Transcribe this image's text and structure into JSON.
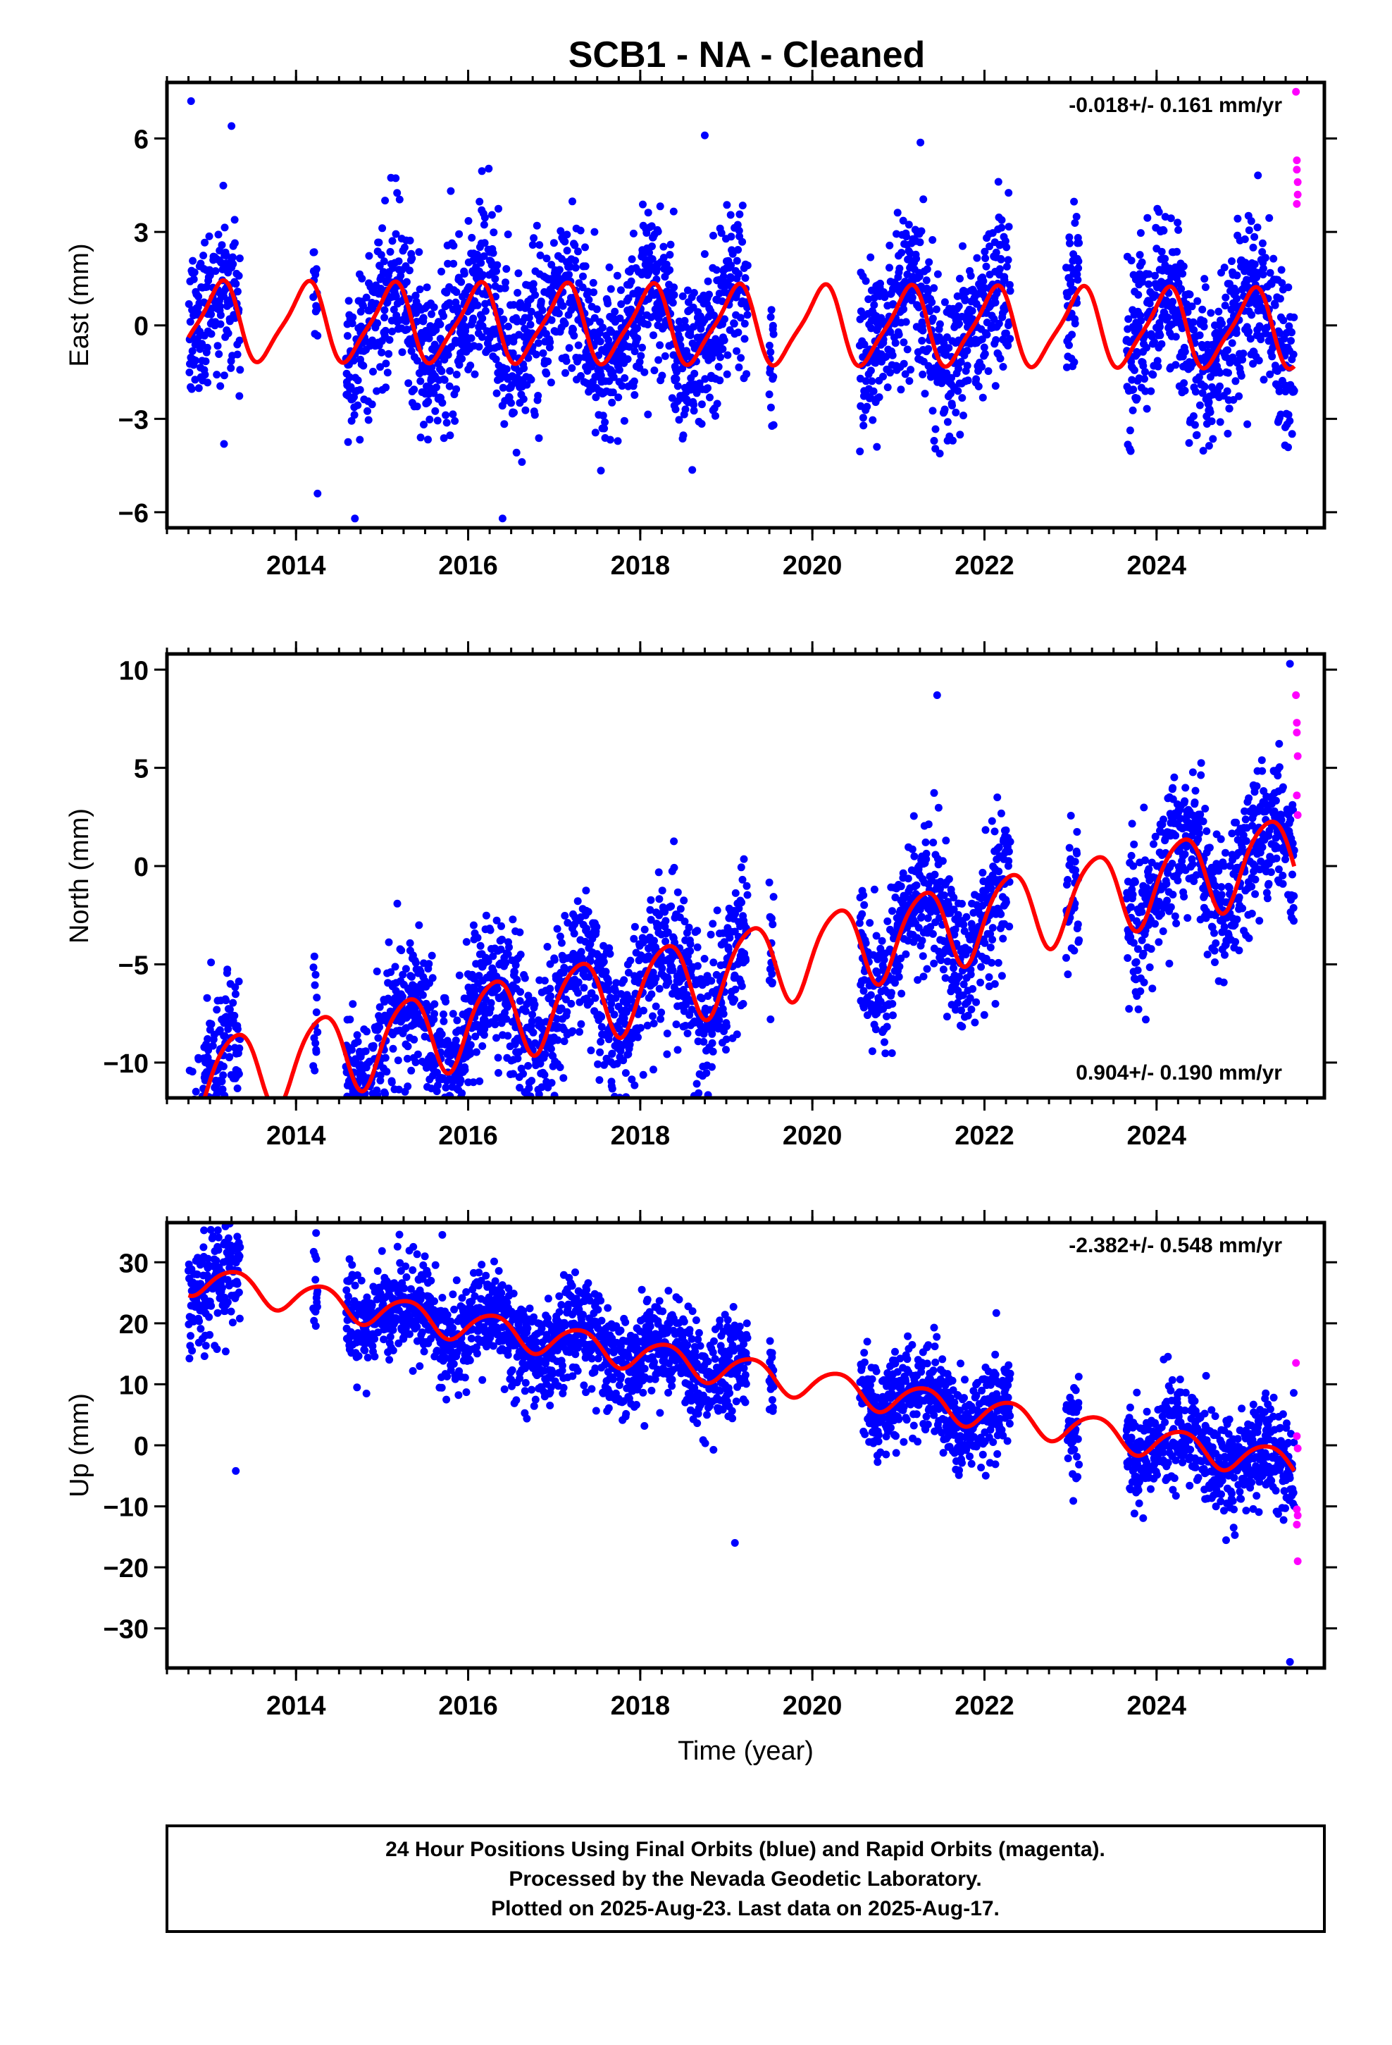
{
  "title": "SCB1  - NA - Cleaned",
  "footer": {
    "lines": [
      "24 Hour Positions Using Final Orbits (blue) and Rapid Orbits (magenta).",
      "Processed by the Nevada Geodetic Laboratory.",
      "Plotted on 2025-Aug-23. Last data on 2025-Aug-17."
    ]
  },
  "colors": {
    "final_orbits": "#0000ff",
    "rapid_orbits": "#ff00ff",
    "model": "#ff0000"
  },
  "chart_data": [
    {
      "type": "scatter",
      "ylabel": "East (mm)",
      "xlabel": "",
      "xlim": [
        2012.5,
        2025.95
      ],
      "ylim": [
        -6.5,
        7.8
      ],
      "xticks": [
        "2014",
        "2016",
        "2018",
        "2020",
        "2022",
        "2024"
      ],
      "yticks": [
        "−6",
        "−3",
        "0",
        "3",
        "6"
      ],
      "rate_label": "-0.018+/- 0.161 mm/yr",
      "rate_position": "top-right",
      "trend": {
        "intercept": 0.0,
        "slope": -0.018
      },
      "seasonal": {
        "annual_cos": 0.95,
        "annual_sin": 0.75,
        "semiannual_cos": -0.25,
        "semiannual_sin": 0.1
      },
      "scatter": 1.3,
      "segments": [
        [
          2012.75,
          2013.35
        ],
        [
          2014.2,
          2014.25
        ],
        [
          2014.58,
          2019.25
        ],
        [
          2019.5,
          2019.55
        ],
        [
          2020.55,
          2022.3
        ],
        [
          2022.95,
          2023.1
        ],
        [
          2023.65,
          2025.6
        ]
      ],
      "outliers": [
        [
          2012.78,
          7.2
        ],
        [
          2013.25,
          6.4
        ],
        [
          2018.75,
          6.1
        ],
        [
          2014.25,
          -5.4
        ],
        [
          2016.4,
          -6.2
        ],
        [
          2019.55,
          -3.2
        ],
        [
          2020.75,
          -3.9
        ]
      ],
      "rapid": [
        [
          2025.62,
          7.5
        ],
        [
          2025.63,
          5.3
        ],
        [
          2025.63,
          5.0
        ],
        [
          2025.64,
          4.6
        ],
        [
          2025.64,
          4.2
        ],
        [
          2025.63,
          3.9
        ]
      ]
    },
    {
      "type": "scatter",
      "ylabel": "North (mm)",
      "xlabel": "",
      "xlim": [
        2012.5,
        2025.95
      ],
      "ylim": [
        -11.8,
        10.8
      ],
      "xticks": [
        "2014",
        "2016",
        "2018",
        "2020",
        "2022",
        "2024"
      ],
      "yticks": [
        "−10",
        "−5",
        "0",
        "5",
        "10"
      ],
      "rate_label": "0.904+/- 0.190 mm/yr",
      "rate_position": "bottom-right",
      "trend": {
        "intercept": -5.3,
        "slope": 0.904
      },
      "seasonal": {
        "annual_cos": -0.5,
        "annual_sin": 2.0,
        "semiannual_cos": 0.3,
        "semiannual_sin": 0.0
      },
      "scatter": 1.8,
      "segments": [
        [
          2012.75,
          2013.35
        ],
        [
          2014.2,
          2014.25
        ],
        [
          2014.58,
          2019.25
        ],
        [
          2019.5,
          2019.55
        ],
        [
          2020.55,
          2022.3
        ],
        [
          2022.95,
          2023.1
        ],
        [
          2023.65,
          2025.6
        ]
      ],
      "outliers": [
        [
          2015.9,
          -10.6
        ],
        [
          2025.55,
          10.3
        ],
        [
          2021.45,
          8.7
        ]
      ],
      "rapid": [
        [
          2025.62,
          8.7
        ],
        [
          2025.63,
          7.3
        ],
        [
          2025.63,
          6.8
        ],
        [
          2025.64,
          5.6
        ],
        [
          2025.63,
          3.6
        ],
        [
          2025.64,
          2.6
        ]
      ]
    },
    {
      "type": "scatter",
      "ylabel": "Up (mm)",
      "xlabel": "Time (year)",
      "xlim": [
        2012.5,
        2025.95
      ],
      "ylim": [
        -36.5,
        36.5
      ],
      "xticks": [
        "2014",
        "2016",
        "2018",
        "2020",
        "2022",
        "2024"
      ],
      "yticks": [
        "−30",
        "−20",
        "−10",
        "0",
        "10",
        "20",
        "30"
      ],
      "rate_label": "-2.382+/- 0.548 mm/yr",
      "rate_position": "top-right",
      "trend": {
        "intercept": 12.5,
        "slope": -2.382
      },
      "seasonal": {
        "annual_cos": -0.5,
        "annual_sin": 2.5,
        "semiannual_cos": 0.3,
        "semiannual_sin": 0.0
      },
      "scatter": 4.0,
      "segments": [
        [
          2012.75,
          2013.35
        ],
        [
          2014.2,
          2014.25
        ],
        [
          2014.58,
          2019.25
        ],
        [
          2019.5,
          2019.55
        ],
        [
          2020.55,
          2022.3
        ],
        [
          2022.95,
          2023.1
        ],
        [
          2023.65,
          2025.6
        ]
      ],
      "outliers": [
        [
          2013.05,
          30.5
        ],
        [
          2015.7,
          34.5
        ],
        [
          2013.3,
          -4.2
        ],
        [
          2019.1,
          -16.0
        ],
        [
          2025.55,
          -35.5
        ]
      ],
      "rapid": [
        [
          2025.62,
          13.5
        ],
        [
          2025.63,
          1.5
        ],
        [
          2025.64,
          -0.5
        ],
        [
          2025.63,
          -10.5
        ],
        [
          2025.64,
          -11.5
        ],
        [
          2025.63,
          -13.0
        ],
        [
          2025.64,
          -19.0
        ]
      ]
    }
  ]
}
